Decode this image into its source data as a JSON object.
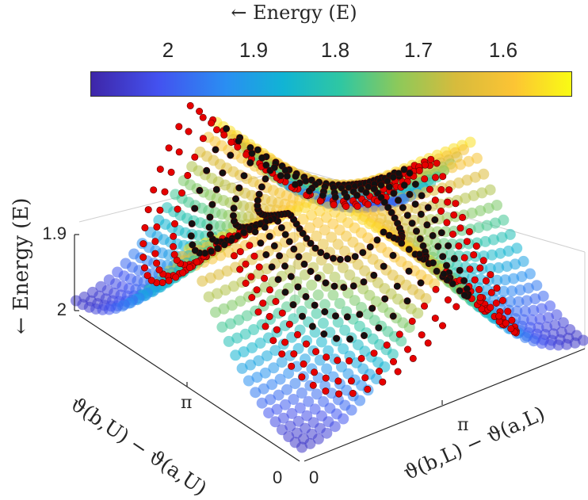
{
  "chart_data": {
    "type": "scatter",
    "title": "",
    "colorbar": {
      "label": "← Energy (E)",
      "colormap": "parula",
      "ticks": [
        "2",
        "1.9",
        "1.8",
        "1.7",
        "1.6"
      ],
      "tick_values": [
        2.0,
        1.9,
        1.8,
        1.7,
        1.6
      ],
      "range": [
        2.04,
        1.53
      ],
      "direction": "reversed"
    },
    "zlabel": "← Energy (E)",
    "zticks": [
      "1.9",
      "2"
    ],
    "xlabel": "ϑ(b,U) − ϑ(a,U)",
    "xticks": [
      "0",
      "π"
    ],
    "ylabel": "ϑ(b,L) − ϑ(a,L)",
    "yticks": [
      "0",
      "π"
    ],
    "xlim": [
      0,
      6.2832
    ],
    "ylim": [
      0,
      6.2832
    ],
    "zlim": [
      1.53,
      2.04
    ],
    "marker_groups": [
      {
        "color": "#e60000",
        "role": "red-marked states"
      },
      {
        "color": "#111111",
        "role": "black-marked states"
      }
    ],
    "surface_samples": [
      {
        "x": 3.14,
        "y": 3.14,
        "z": 1.56
      },
      {
        "x": 0.0,
        "y": 0.0,
        "z": 2.02
      },
      {
        "x": 6.28,
        "y": 6.28,
        "z": 2.02
      },
      {
        "x": 0.0,
        "y": 6.28,
        "z": 1.88
      },
      {
        "x": 6.28,
        "y": 0.0,
        "z": 1.88
      },
      {
        "x": 3.14,
        "y": 0.0,
        "z": 1.9
      },
      {
        "x": 0.0,
        "y": 3.14,
        "z": 1.9
      }
    ]
  }
}
